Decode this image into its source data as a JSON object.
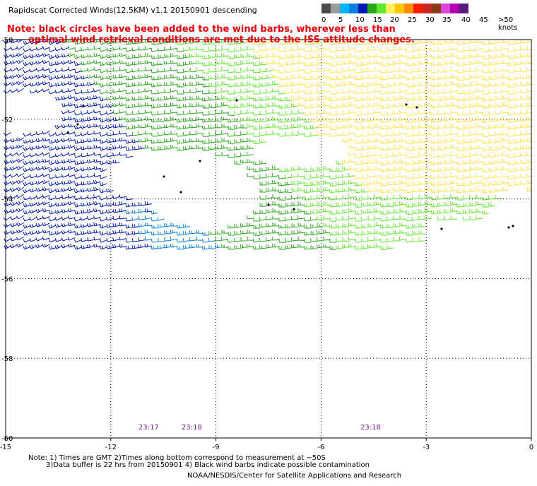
{
  "header": {
    "title": "Rapidscat Corrected Winds(12.5KM) v1.1 20150901 descending"
  },
  "note": {
    "line1": "Note: black circles have been added to the wind barbs, wherever less than",
    "line2": "optimal wind retrieval conditions are met due to the ISS attitude changes."
  },
  "legend": {
    "colors": [
      "#4d4d4d",
      "#9a9a9a",
      "#00b4ff",
      "#0a7fe0",
      "#0019b4",
      "#29a81b",
      "#5ee82c",
      "#ffee5a",
      "#ffc700",
      "#ff8a00",
      "#ff1b00",
      "#c62a1f",
      "#8b3a1a",
      "#dc45d6",
      "#b100b1",
      "#5a1a7a"
    ],
    "labels": [
      "0",
      "5",
      "10",
      "15",
      "20",
      "25",
      "30",
      "35",
      "40",
      "45",
      ">50 knots"
    ]
  },
  "axes": {
    "lat_labels": [
      "-50",
      "-52",
      "-54",
      "-56",
      "-58",
      "-60"
    ],
    "lon_labels": [
      "-15",
      "-12",
      "-9",
      "-6",
      "-3",
      "0"
    ]
  },
  "times": [
    "23:17",
    "23:18",
    "23:18"
  ],
  "footer": {
    "line1": "Note: 1) Times are GMT 2)Times along bottom correspond to measurement at ~50S",
    "line2": "3)Data buffer is 22 hrs from 20150901 4) Black wind barbs indicate possible contamination",
    "credit": "NOAA/NESDIS/Center for Satellite Applications and Research"
  },
  "wind_field": {
    "speed_unit": "knots",
    "dominant_direction": "westerly",
    "region_speeds_knots": {
      "west_north": 15,
      "west_south": 12,
      "central": 20,
      "east": 24
    }
  }
}
